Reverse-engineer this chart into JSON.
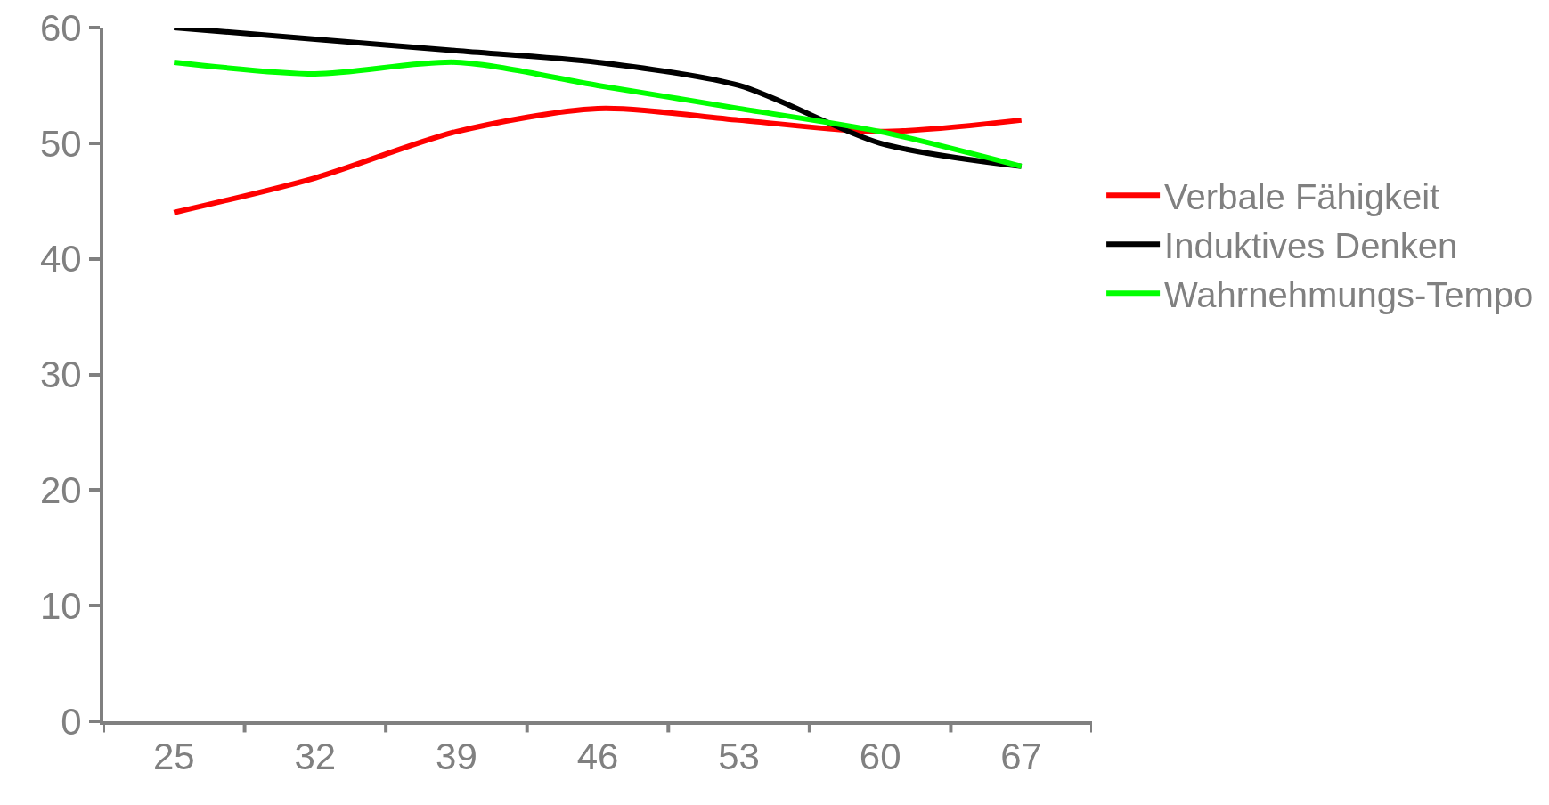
{
  "chart_data": {
    "type": "line",
    "categories": [
      "25",
      "32",
      "39",
      "46",
      "53",
      "60",
      "67"
    ],
    "series": [
      {
        "name": "Verbale Fähigkeit",
        "color": "#ff0000",
        "values": [
          44,
          47,
          51,
          53,
          52,
          51,
          52
        ]
      },
      {
        "name": "Induktives Denken",
        "color": "#000000",
        "values": [
          60,
          59,
          58,
          57,
          55,
          50,
          48
        ]
      },
      {
        "name": "Wahrnehmungs-Tempo",
        "color": "#00ff00",
        "values": [
          57,
          56,
          57,
          55,
          53,
          51,
          48
        ]
      }
    ],
    "ylim": [
      0,
      60
    ],
    "yticks": [
      0,
      10,
      20,
      30,
      40,
      50,
      60
    ],
    "grid": false,
    "legend": "right",
    "marker": "none",
    "line_style": "solid"
  }
}
